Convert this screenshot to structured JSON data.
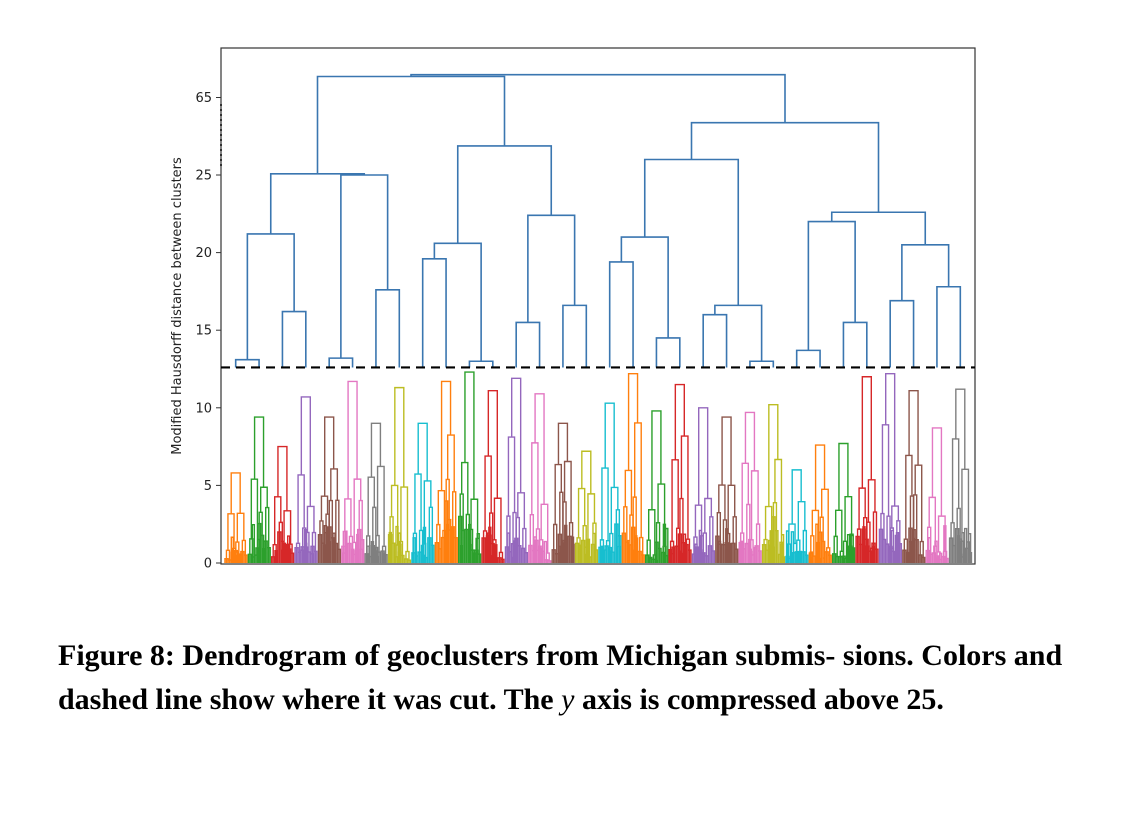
{
  "chart_data": {
    "type": "dendrogram",
    "ylabel": "Modified Hausdorff distance between clusters",
    "y_ticks": [
      {
        "value": 0,
        "label": "0"
      },
      {
        "value": 5,
        "label": "5"
      },
      {
        "value": 10,
        "label": "10"
      },
      {
        "value": 15,
        "label": "15"
      },
      {
        "value": 20,
        "label": "20"
      },
      {
        "value": 25,
        "label": "25"
      },
      {
        "value": 65,
        "label": "65"
      }
    ],
    "y_scale": "linear from 0 to 25, compressed above 25",
    "ylim": [
      0,
      70
    ],
    "cut_threshold": 12.6,
    "above_cut_color": "#3a76b0",
    "cluster_colors": [
      "#ff7f0e",
      "#2ca02c",
      "#d62728",
      "#9467bd",
      "#8c564b",
      "#e377c2",
      "#7f7f7f",
      "#bcbd22",
      "#17becf"
    ],
    "grid": false,
    "legend": "none",
    "clusters": [
      {
        "color": "#ff7f0e",
        "height": 5.8
      },
      {
        "color": "#2ca02c",
        "height": 9.4
      },
      {
        "color": "#d62728",
        "height": 7.5
      },
      {
        "color": "#9467bd",
        "height": 10.7
      },
      {
        "color": "#8c564b",
        "height": 9.4
      },
      {
        "color": "#e377c2",
        "height": 11.7
      },
      {
        "color": "#7f7f7f",
        "height": 9.0
      },
      {
        "color": "#bcbd22",
        "height": 11.3
      },
      {
        "color": "#17becf",
        "height": 9.0
      },
      {
        "color": "#ff7f0e",
        "height": 11.7
      },
      {
        "color": "#2ca02c",
        "height": 12.3
      },
      {
        "color": "#d62728",
        "height": 11.1
      },
      {
        "color": "#9467bd",
        "height": 11.9
      },
      {
        "color": "#e377c2",
        "height": 10.9
      },
      {
        "color": "#8c564b",
        "height": 9.0
      },
      {
        "color": "#bcbd22",
        "height": 7.2
      },
      {
        "color": "#17becf",
        "height": 10.3
      },
      {
        "color": "#ff7f0e",
        "height": 12.2
      },
      {
        "color": "#2ca02c",
        "height": 9.8
      },
      {
        "color": "#d62728",
        "height": 11.5
      },
      {
        "color": "#9467bd",
        "height": 10.0
      },
      {
        "color": "#8c564b",
        "height": 9.4
      },
      {
        "color": "#e377c2",
        "height": 9.7
      },
      {
        "color": "#bcbd22",
        "height": 10.2
      },
      {
        "color": "#17becf",
        "height": 6.0
      },
      {
        "color": "#ff7f0e",
        "height": 7.6
      },
      {
        "color": "#2ca02c",
        "height": 7.7
      },
      {
        "color": "#d62728",
        "height": 12.0
      },
      {
        "color": "#9467bd",
        "height": 12.2
      },
      {
        "color": "#8c564b",
        "height": 11.1
      },
      {
        "color": "#e377c2",
        "height": 8.7
      },
      {
        "color": "#7f7f7f",
        "height": 11.2
      }
    ]
  },
  "caption": {
    "prefix": "Figure 8: Dendrogram of geoclusters from Michigan submis- sions. Colors and dashed line show where it was cut. The ",
    "y_symbol": "y",
    "suffix": " axis is compressed above 25."
  }
}
